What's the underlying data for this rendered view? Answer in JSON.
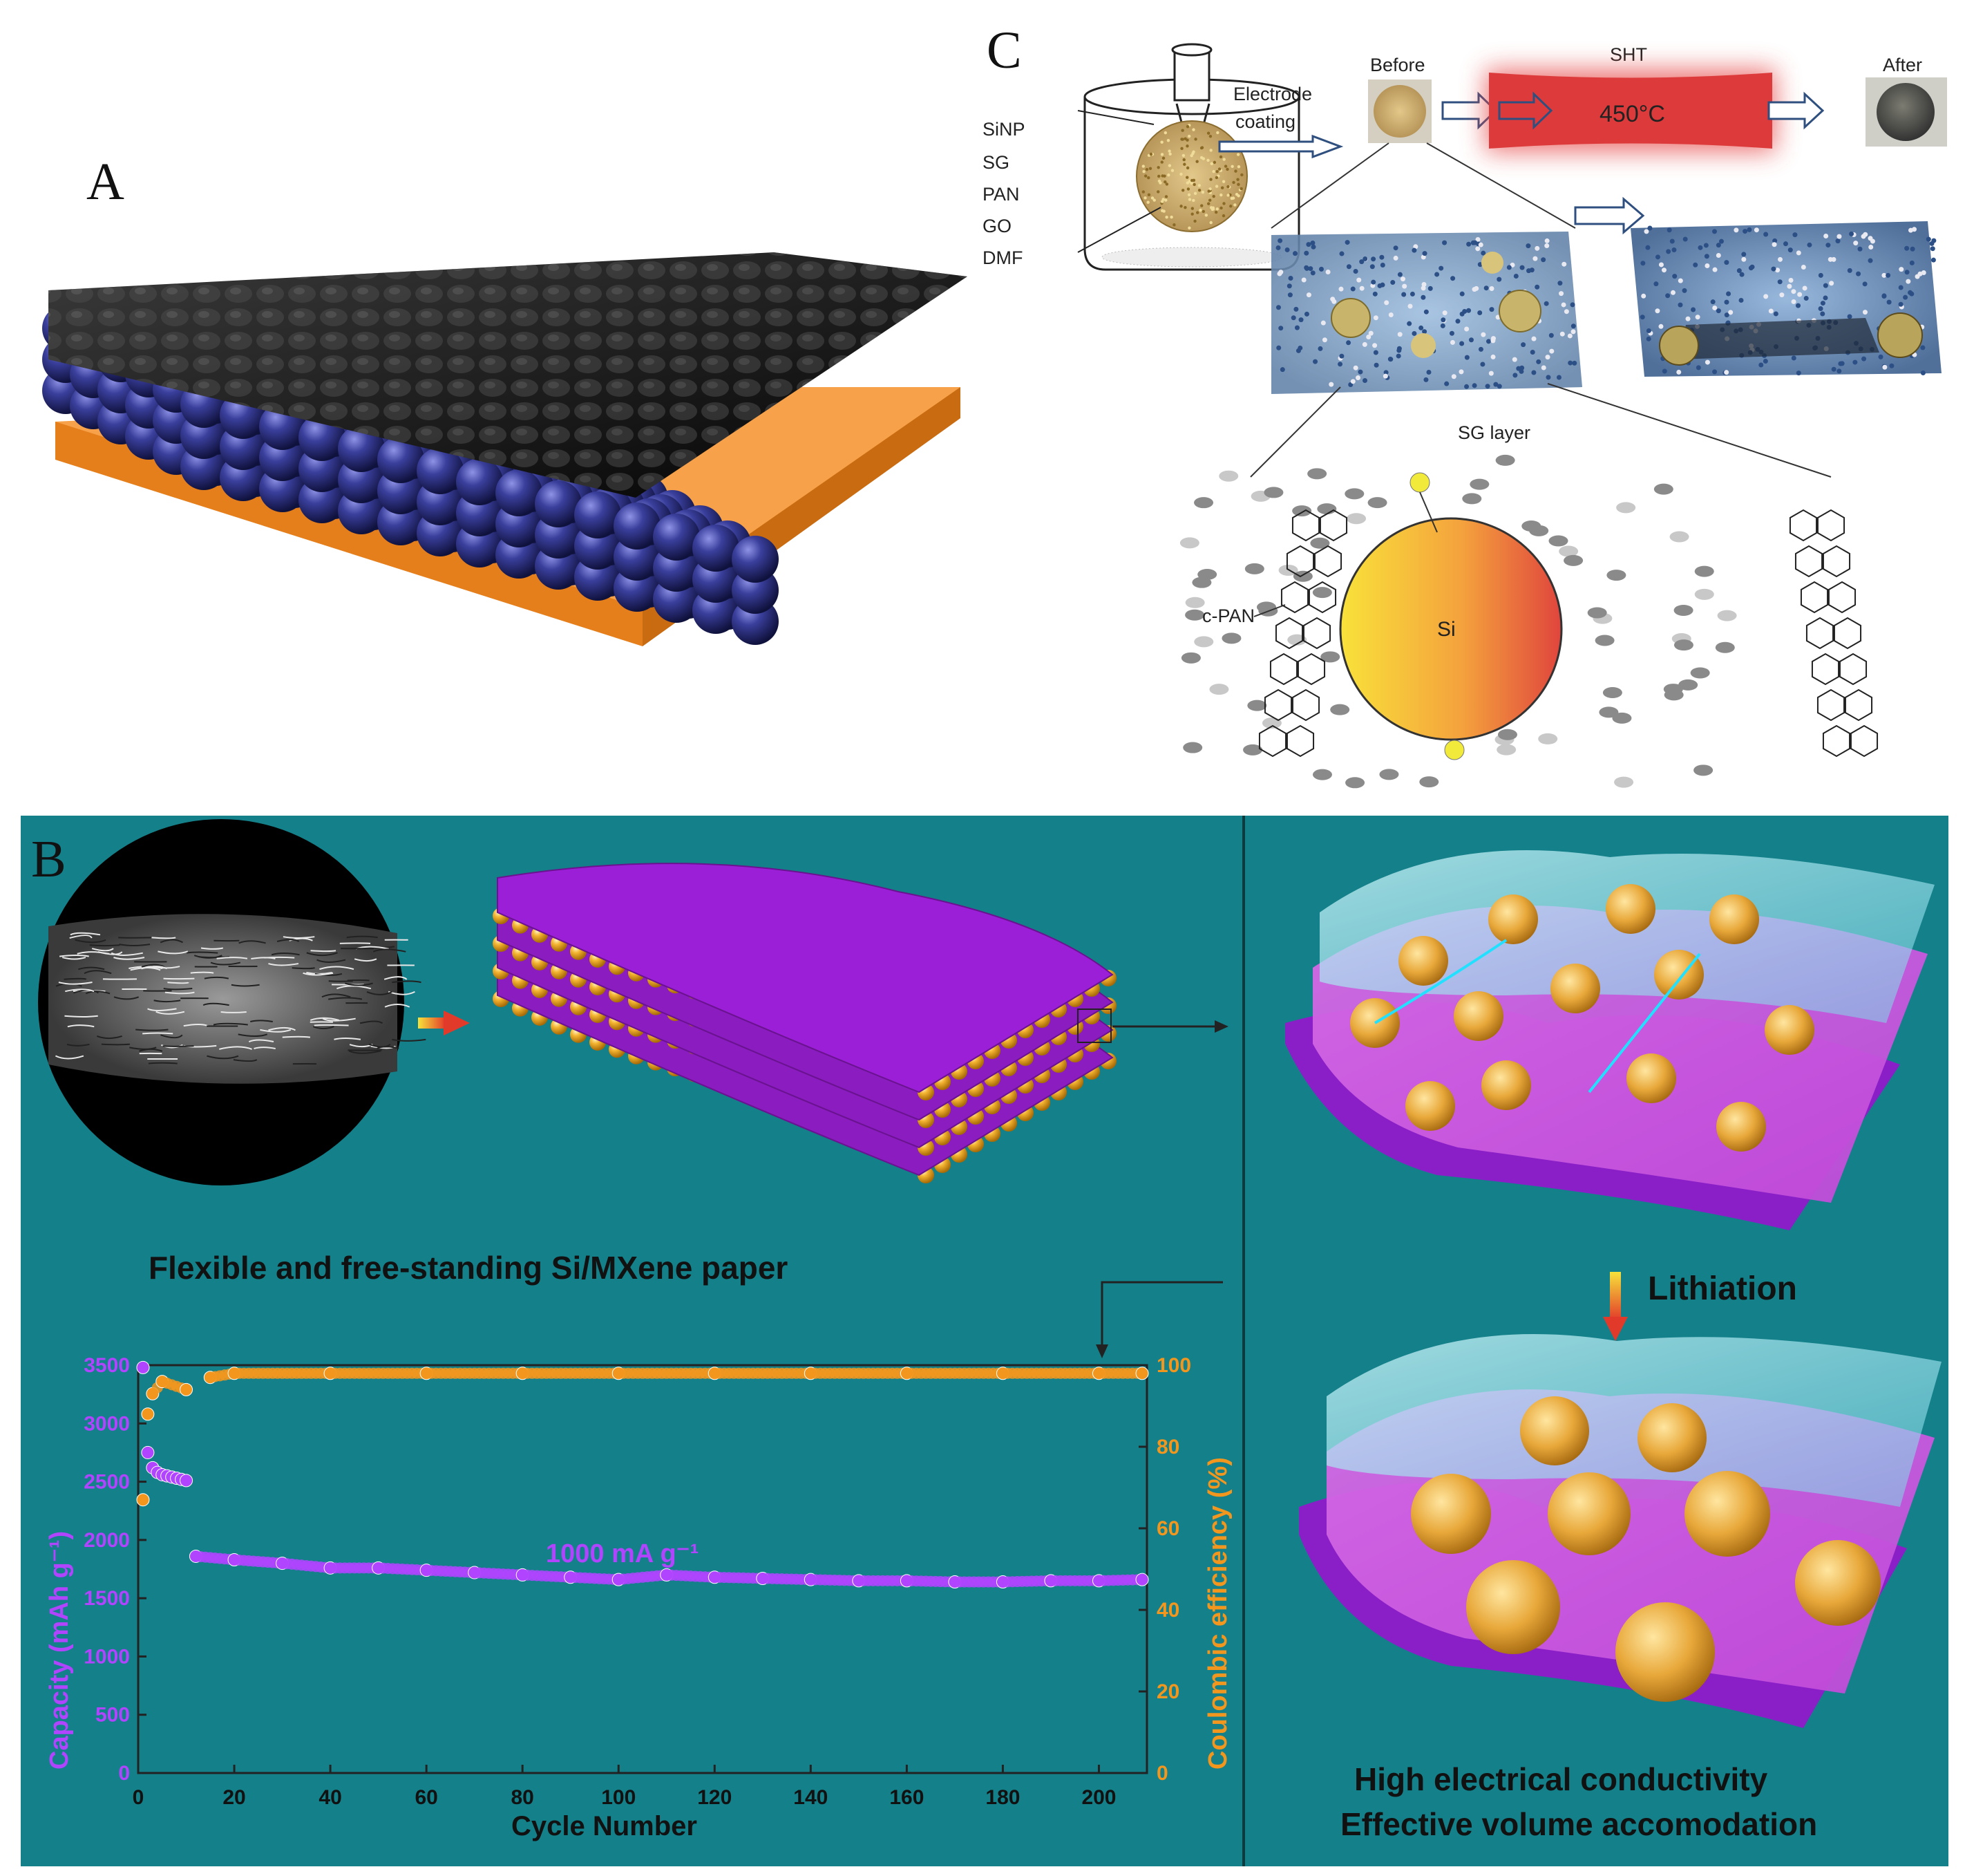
{
  "panels": {
    "a": {
      "letter": "A"
    },
    "b": {
      "letter": "B"
    },
    "c": {
      "letter": "C"
    }
  },
  "panel_c": {
    "ingredients": [
      "SiNP",
      "SG",
      "PAN",
      "GO",
      "DMF"
    ],
    "electrode_coating": [
      "Electrode",
      "coating"
    ],
    "before": "Before",
    "sht": "SHT",
    "temperature": "450°C",
    "after": "After",
    "sg_layer": "SG layer",
    "c_pan": "c-PAN",
    "si": "Si"
  },
  "panel_b": {
    "paper_caption": "Flexible and free-standing Si/MXene paper",
    "lithiation": "Lithiation",
    "property_1": "High electrical conductivity",
    "property_2": "Effective volume accomodation",
    "colors": {
      "background": "#14808a",
      "mxene": "#9b1fd6",
      "si": "#f2b027",
      "capacity": "#b044ff",
      "efficiency": "#f2961d"
    }
  },
  "chart_data": {
    "type": "scatter",
    "title": "",
    "xlabel": "Cycle Number",
    "ylabel_left": "Capacity (mAh g⁻¹)",
    "ylabel_right": "Coulombic efficiency (%)",
    "annotation": "1000 mA g⁻¹",
    "xlim": [
      0,
      210
    ],
    "ylim_left": [
      0,
      3500
    ],
    "ylim_right": [
      0,
      100
    ],
    "x_ticks": [
      0,
      20,
      40,
      60,
      80,
      100,
      120,
      140,
      160,
      180,
      200
    ],
    "y_left_ticks": [
      0,
      500,
      1000,
      1500,
      2000,
      2500,
      3000,
      3500
    ],
    "y_right_ticks": [
      0,
      20,
      40,
      60,
      80,
      100
    ],
    "series": [
      {
        "axis": "left",
        "points": [
          [
            1,
            3480
          ],
          [
            2,
            2750
          ],
          [
            3,
            2620
          ],
          [
            4,
            2580
          ],
          [
            5,
            2560
          ],
          [
            6,
            2550
          ],
          [
            7,
            2540
          ],
          [
            8,
            2530
          ],
          [
            9,
            2520
          ],
          [
            10,
            2510
          ],
          [
            12,
            1860
          ],
          [
            20,
            1830
          ],
          [
            30,
            1800
          ],
          [
            40,
            1760
          ],
          [
            50,
            1760
          ],
          [
            60,
            1740
          ],
          [
            70,
            1720
          ],
          [
            80,
            1700
          ],
          [
            90,
            1680
          ],
          [
            100,
            1660
          ],
          [
            110,
            1700
          ],
          [
            120,
            1680
          ],
          [
            130,
            1670
          ],
          [
            140,
            1660
          ],
          [
            150,
            1650
          ],
          [
            160,
            1650
          ],
          [
            170,
            1640
          ],
          [
            180,
            1640
          ],
          [
            190,
            1650
          ],
          [
            200,
            1650
          ],
          [
            209,
            1660
          ]
        ]
      },
      {
        "axis": "right",
        "points": [
          [
            1,
            67
          ],
          [
            2,
            88
          ],
          [
            3,
            93
          ],
          [
            5,
            96
          ],
          [
            10,
            94
          ],
          [
            15,
            97
          ],
          [
            20,
            98
          ],
          [
            40,
            98
          ],
          [
            60,
            98
          ],
          [
            80,
            98
          ],
          [
            100,
            98
          ],
          [
            120,
            98
          ],
          [
            140,
            98
          ],
          [
            160,
            98
          ],
          [
            180,
            98
          ],
          [
            200,
            98
          ],
          [
            209,
            98
          ]
        ]
      }
    ]
  }
}
